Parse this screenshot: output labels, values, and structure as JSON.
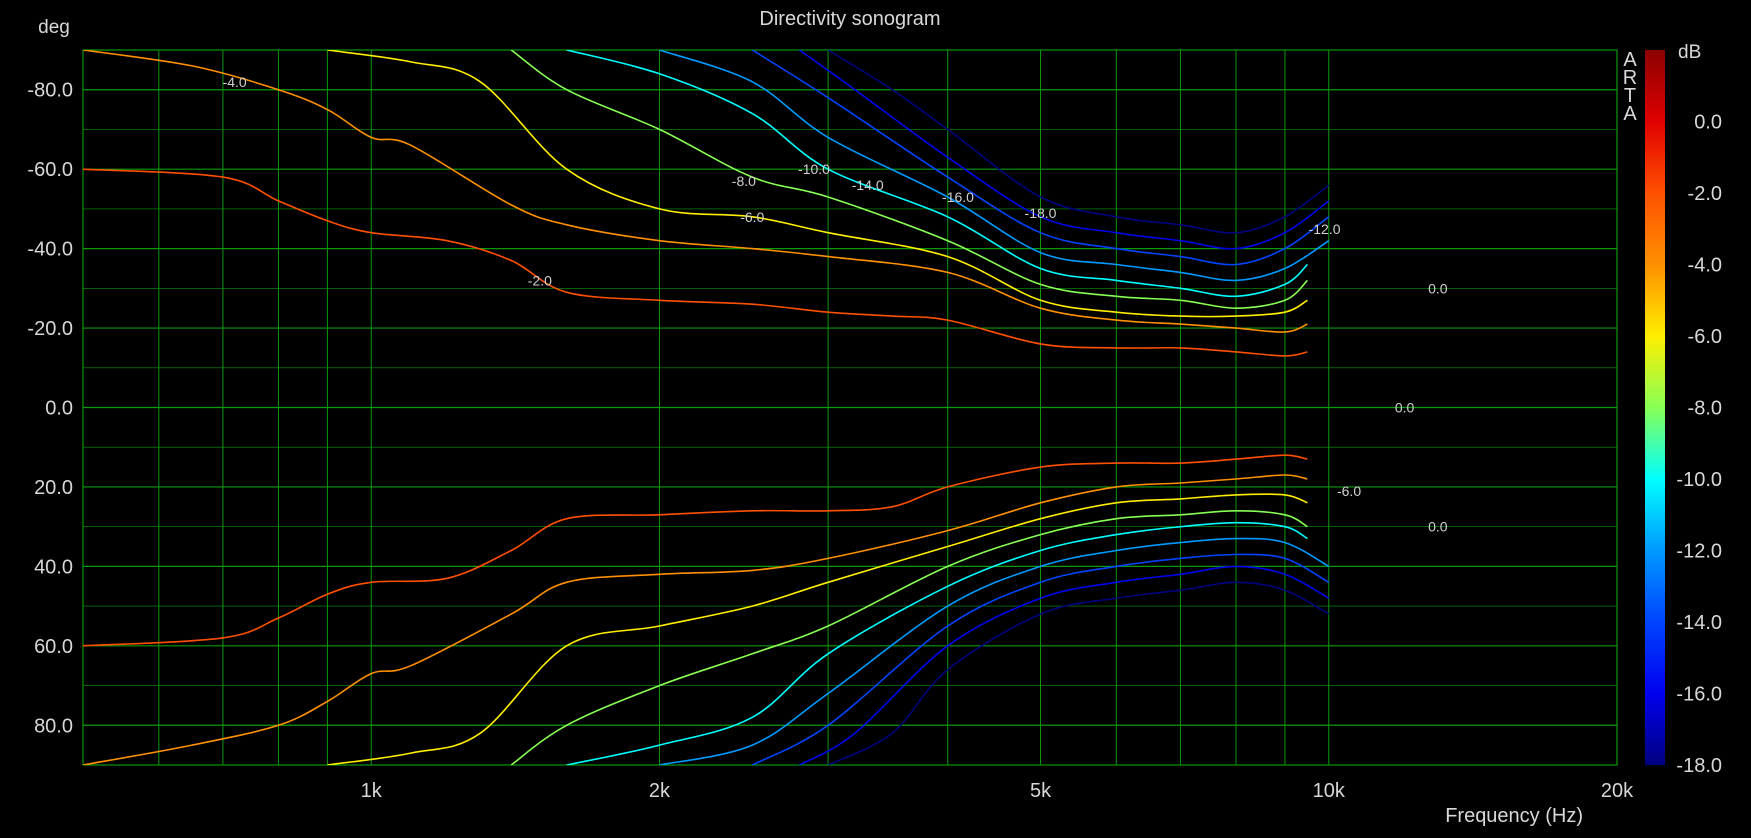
{
  "chart_data": {
    "type": "heatmap",
    "subtype": "contour",
    "title": "Directivity sonogram",
    "xlabel": "Frequency (Hz)",
    "ylabel": "deg",
    "watermark": "ARTA",
    "x_scale": "log",
    "xlim": [
      500,
      20000
    ],
    "ylim": [
      90,
      -90
    ],
    "grid": true,
    "x_ticks": [
      {
        "value": 1000,
        "label": "1k"
      },
      {
        "value": 2000,
        "label": "2k"
      },
      {
        "value": 5000,
        "label": "5k"
      },
      {
        "value": 10000,
        "label": "10k"
      },
      {
        "value": 20000,
        "label": "20k"
      }
    ],
    "y_ticks": [
      {
        "value": -80,
        "label": "-80.0"
      },
      {
        "value": -60,
        "label": "-60.0"
      },
      {
        "value": -40,
        "label": "-40.0"
      },
      {
        "value": -20,
        "label": "-20.0"
      },
      {
        "value": 0,
        "label": "0.0"
      },
      {
        "value": 20,
        "label": "20.0"
      },
      {
        "value": 40,
        "label": "40.0"
      },
      {
        "value": 60,
        "label": "60.0"
      },
      {
        "value": 80,
        "label": "80.0"
      }
    ],
    "colorbar": {
      "unit": "dB",
      "range": [
        -18,
        2
      ],
      "ticks": [
        "0.0",
        "-2.0",
        "-4.0",
        "-6.0",
        "-8.0",
        "-10.0",
        "-12.0",
        "-14.0",
        "-16.0",
        "-18.0"
      ],
      "tick_values": [
        0,
        -2,
        -4,
        -6,
        -8,
        -10,
        -12,
        -14,
        -16,
        -18
      ],
      "stops": [
        {
          "value": 2,
          "color": "#8b0000"
        },
        {
          "value": 0,
          "color": "#e00000"
        },
        {
          "value": -2,
          "color": "#ff5000"
        },
        {
          "value": -4,
          "color": "#ff9000"
        },
        {
          "value": -6,
          "color": "#ffee00"
        },
        {
          "value": -8,
          "color": "#88ff55"
        },
        {
          "value": -10,
          "color": "#00ffff"
        },
        {
          "value": -12,
          "color": "#0099ff"
        },
        {
          "value": -14,
          "color": "#0044ff"
        },
        {
          "value": -16,
          "color": "#0000ee"
        },
        {
          "value": -18,
          "color": "#000080"
        }
      ]
    },
    "contour_levels": [
      -2,
      -4,
      -6,
      -8,
      -10,
      -12,
      -14,
      -16,
      -18
    ],
    "contours": [
      {
        "level": -2,
        "branches": [
          [
            [
              500,
              -60
            ],
            [
              700,
              -58
            ],
            [
              800,
              -52
            ],
            [
              900,
              -47
            ],
            [
              1000,
              -44
            ],
            [
              1200,
              -42
            ],
            [
              1400,
              -37
            ],
            [
              1600,
              -29
            ],
            [
              2000,
              -27
            ],
            [
              2500,
              -26
            ],
            [
              3000,
              -24
            ],
            [
              3500,
              -23
            ],
            [
              4000,
              -22
            ],
            [
              5000,
              -16
            ],
            [
              6000,
              -15
            ],
            [
              7000,
              -15
            ],
            [
              8000,
              -14
            ],
            [
              9000,
              -13
            ],
            [
              9500,
              -14
            ]
          ],
          [
            [
              500,
              60
            ],
            [
              700,
              58
            ],
            [
              800,
              53
            ],
            [
              900,
              47
            ],
            [
              1000,
              44
            ],
            [
              1200,
              43
            ],
            [
              1400,
              36
            ],
            [
              1600,
              28
            ],
            [
              2000,
              27
            ],
            [
              2500,
              26
            ],
            [
              3000,
              26
            ],
            [
              3500,
              25
            ],
            [
              4000,
              20
            ],
            [
              5000,
              15
            ],
            [
              6000,
              14
            ],
            [
              7000,
              14
            ],
            [
              8000,
              13
            ],
            [
              9000,
              12
            ],
            [
              9500,
              13
            ]
          ]
        ]
      },
      {
        "level": -4,
        "branches": [
          [
            [
              500,
              -90
            ],
            [
              650,
              -86
            ],
            [
              800,
              -80
            ],
            [
              900,
              -75
            ],
            [
              1000,
              -68
            ],
            [
              1100,
              -66
            ],
            [
              1400,
              -51
            ],
            [
              1600,
              -46
            ],
            [
              2000,
              -42
            ],
            [
              2500,
              -40
            ],
            [
              3000,
              -38
            ],
            [
              4000,
              -34
            ],
            [
              5000,
              -25
            ],
            [
              6000,
              -22
            ],
            [
              7000,
              -21
            ],
            [
              8000,
              -20
            ],
            [
              9000,
              -19
            ],
            [
              9500,
              -21
            ]
          ],
          [
            [
              500,
              90
            ],
            [
              650,
              85
            ],
            [
              800,
              80
            ],
            [
              900,
              74
            ],
            [
              1000,
              67
            ],
            [
              1100,
              65
            ],
            [
              1400,
              52
            ],
            [
              1600,
              44
            ],
            [
              2000,
              42
            ],
            [
              2500,
              41
            ],
            [
              3000,
              38
            ],
            [
              4000,
              31
            ],
            [
              5000,
              24
            ],
            [
              6000,
              20
            ],
            [
              7000,
              19
            ],
            [
              8000,
              18
            ],
            [
              9000,
              17
            ],
            [
              9500,
              18
            ]
          ]
        ]
      },
      {
        "level": -6,
        "branches": [
          [
            [
              900,
              -90
            ],
            [
              1100,
              -87
            ],
            [
              1300,
              -82
            ],
            [
              1600,
              -60
            ],
            [
              2000,
              -50
            ],
            [
              2500,
              -48
            ],
            [
              3000,
              -44
            ],
            [
              4000,
              -38
            ],
            [
              5000,
              -27
            ],
            [
              6000,
              -24
            ],
            [
              7000,
              -23
            ],
            [
              8000,
              -23
            ],
            [
              9000,
              -24
            ],
            [
              9500,
              -27
            ]
          ],
          [
            [
              900,
              90
            ],
            [
              1100,
              87
            ],
            [
              1300,
              82
            ],
            [
              1600,
              60
            ],
            [
              2000,
              55
            ],
            [
              2500,
              50
            ],
            [
              3000,
              44
            ],
            [
              4000,
              35
            ],
            [
              5000,
              28
            ],
            [
              6000,
              24
            ],
            [
              7000,
              23
            ],
            [
              8000,
              22
            ],
            [
              9000,
              22
            ],
            [
              9500,
              24
            ]
          ]
        ]
      },
      {
        "level": -8,
        "branches": [
          [
            [
              1400,
              -90
            ],
            [
              1600,
              -80
            ],
            [
              2000,
              -70
            ],
            [
              2500,
              -58
            ],
            [
              3000,
              -53
            ],
            [
              4000,
              -42
            ],
            [
              5000,
              -31
            ],
            [
              6000,
              -28
            ],
            [
              7000,
              -27
            ],
            [
              8000,
              -25
            ],
            [
              9000,
              -27
            ],
            [
              9500,
              -32
            ]
          ],
          [
            [
              1400,
              90
            ],
            [
              1600,
              80
            ],
            [
              2000,
              70
            ],
            [
              2500,
              62
            ],
            [
              3000,
              55
            ],
            [
              4000,
              40
            ],
            [
              5000,
              32
            ],
            [
              6000,
              28
            ],
            [
              7000,
              27
            ],
            [
              8000,
              26
            ],
            [
              9000,
              27
            ],
            [
              9500,
              30
            ]
          ]
        ]
      },
      {
        "level": -10,
        "branches": [
          [
            [
              1600,
              -90
            ],
            [
              2000,
              -84
            ],
            [
              2500,
              -74
            ],
            [
              3000,
              -60
            ],
            [
              4000,
              -48
            ],
            [
              5000,
              -35
            ],
            [
              6000,
              -32
            ],
            [
              7000,
              -30
            ],
            [
              8000,
              -28
            ],
            [
              9000,
              -31
            ],
            [
              9500,
              -36
            ]
          ],
          [
            [
              1600,
              90
            ],
            [
              2000,
              85
            ],
            [
              2500,
              78
            ],
            [
              3000,
              62
            ],
            [
              4000,
              45
            ],
            [
              5000,
              36
            ],
            [
              6000,
              32
            ],
            [
              7000,
              30
            ],
            [
              8000,
              29
            ],
            [
              9000,
              30
            ],
            [
              9500,
              33
            ]
          ]
        ]
      },
      {
        "level": -12,
        "branches": [
          [
            [
              2000,
              -90
            ],
            [
              2500,
              -82
            ],
            [
              3000,
              -68
            ],
            [
              4000,
              -53
            ],
            [
              5000,
              -39
            ],
            [
              6000,
              -36
            ],
            [
              7000,
              -34
            ],
            [
              8000,
              -32
            ],
            [
              9000,
              -35
            ],
            [
              10000,
              -42
            ]
          ],
          [
            [
              2000,
              90
            ],
            [
              2500,
              85
            ],
            [
              3000,
              72
            ],
            [
              4000,
              50
            ],
            [
              5000,
              40
            ],
            [
              6000,
              36
            ],
            [
              7000,
              34
            ],
            [
              8000,
              33
            ],
            [
              9000,
              34
            ],
            [
              10000,
              40
            ]
          ]
        ]
      },
      {
        "level": -14,
        "branches": [
          [
            [
              2500,
              -90
            ],
            [
              3000,
              -78
            ],
            [
              4000,
              -58
            ],
            [
              5000,
              -44
            ],
            [
              6000,
              -40
            ],
            [
              7000,
              -38
            ],
            [
              8000,
              -36
            ],
            [
              9000,
              -40
            ],
            [
              10000,
              -48
            ]
          ],
          [
            [
              2500,
              90
            ],
            [
              3000,
              80
            ],
            [
              4000,
              55
            ],
            [
              5000,
              44
            ],
            [
              6000,
              40
            ],
            [
              7000,
              38
            ],
            [
              8000,
              37
            ],
            [
              9000,
              38
            ],
            [
              10000,
              44
            ]
          ]
        ]
      },
      {
        "level": -16,
        "branches": [
          [
            [
              2800,
              -90
            ],
            [
              3200,
              -80
            ],
            [
              4000,
              -63
            ],
            [
              5000,
              -48
            ],
            [
              6000,
              -44
            ],
            [
              7000,
              -42
            ],
            [
              8000,
              -40
            ],
            [
              9000,
              -44
            ],
            [
              10000,
              -52
            ]
          ],
          [
            [
              2800,
              90
            ],
            [
              3200,
              82
            ],
            [
              4000,
              60
            ],
            [
              5000,
              48
            ],
            [
              6000,
              44
            ],
            [
              7000,
              42
            ],
            [
              8000,
              40
            ],
            [
              9000,
              42
            ],
            [
              10000,
              48
            ]
          ]
        ]
      },
      {
        "level": -18,
        "branches": [
          [
            [
              3000,
              -90
            ],
            [
              3500,
              -80
            ],
            [
              4000,
              -70
            ],
            [
              5000,
              -53
            ],
            [
              6000,
              -48
            ],
            [
              7000,
              -46
            ],
            [
              8000,
              -44
            ],
            [
              9000,
              -48
            ],
            [
              10000,
              -56
            ]
          ],
          [
            [
              3000,
              90
            ],
            [
              3500,
              82
            ],
            [
              4000,
              66
            ],
            [
              5000,
              52
            ],
            [
              6000,
              48
            ],
            [
              7000,
              46
            ],
            [
              8000,
              44
            ],
            [
              9000,
              46
            ],
            [
              10000,
              52
            ]
          ]
        ]
      }
    ],
    "annotations": [
      {
        "text": "-4.0",
        "x": 720,
        "y": -82
      },
      {
        "text": "-2.0",
        "x": 1500,
        "y": -32
      },
      {
        "text": "-8.0",
        "x": 2450,
        "y": -57
      },
      {
        "text": "-6.0",
        "x": 2500,
        "y": -48
      },
      {
        "text": "-10.0",
        "x": 2900,
        "y": -60
      },
      {
        "text": "-14.0",
        "x": 3300,
        "y": -56
      },
      {
        "text": "-16.0",
        "x": 4100,
        "y": -53
      },
      {
        "text": "-18.0",
        "x": 5000,
        "y": -49
      },
      {
        "text": "-12.0",
        "x": 9900,
        "y": -45
      },
      {
        "text": "0.0",
        "x": 13000,
        "y": -30
      },
      {
        "text": "0.0",
        "x": 12000,
        "y": 0
      },
      {
        "text": "-6.0",
        "x": 10500,
        "y": 21
      },
      {
        "text": "0.0",
        "x": 13000,
        "y": 30
      }
    ]
  }
}
